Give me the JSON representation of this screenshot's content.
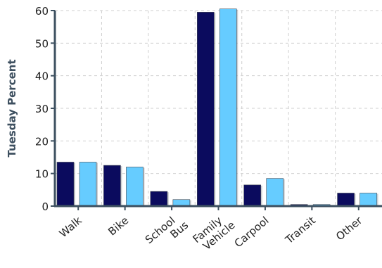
{
  "chart_data": {
    "type": "bar",
    "title": "",
    "xlabel": "",
    "ylabel": "Tuesday Percent",
    "ylim": [
      0,
      60
    ],
    "yticks": [
      0,
      10,
      20,
      30,
      40,
      50,
      60
    ],
    "grid": true,
    "categories": [
      [
        "Walk"
      ],
      [
        "Bike"
      ],
      [
        "School",
        "Bus"
      ],
      [
        "Family",
        "Vehicle"
      ],
      [
        "Carpool"
      ],
      [
        "Transit"
      ],
      [
        "Other"
      ]
    ],
    "series": [
      {
        "values": [
          13.5,
          12.5,
          4.5,
          59.5,
          6.5,
          0.5,
          4.0
        ]
      },
      {
        "values": [
          13.5,
          12.0,
          2.0,
          60.5,
          8.5,
          0.5,
          4.0
        ]
      }
    ],
    "colors": [
      "#0b0b5e",
      "#66ccff"
    ],
    "axis_color": "#3d5060",
    "grid_color": "#cfcfcf"
  }
}
